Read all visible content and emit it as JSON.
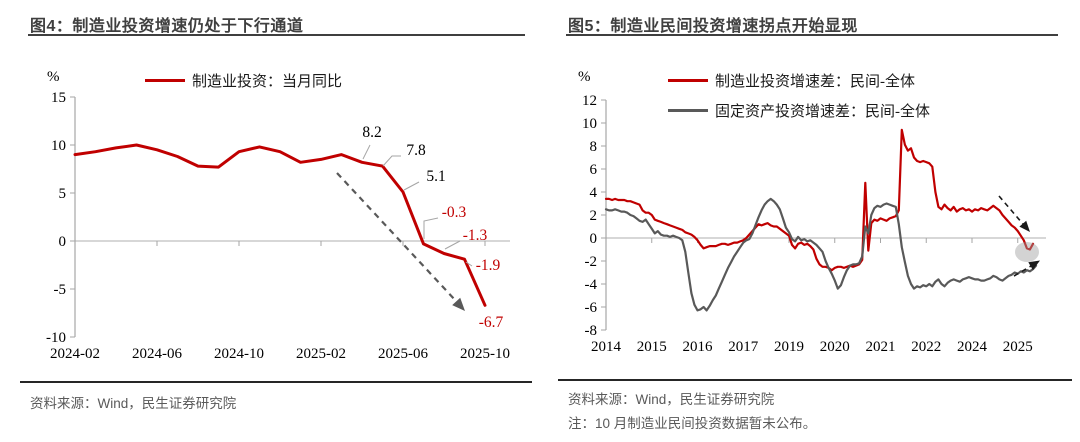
{
  "figure4": {
    "title": "图4：制造业投资增速仍处于下行通道",
    "unit_label": "%",
    "legend": "制造业投资：当月同比",
    "source": "资料来源：Wind，民生证券研究院"
  },
  "figure5": {
    "title": "图5：制造业民间投资增速拐点开始显现",
    "unit_label": "%",
    "legend1": "制造业投资增速差：民间-全体",
    "legend2": "固定资产投资增速差：民间-全体",
    "source": "资料来源：Wind，民生证券研究院",
    "note": "注：10 月制造业民间投资数据暂未公布。"
  },
  "colors": {
    "red": "#C00000",
    "gray": "#595959",
    "axis_line": "#a6a6a6",
    "zero_line": "#bfbfbf",
    "label_black": "#000000"
  },
  "chart_data": [
    {
      "type": "line",
      "title": "图4：制造业投资增速仍处于下行通道",
      "ylabel": "%",
      "ylim": [
        -10,
        15
      ],
      "yticks": [
        15,
        10,
        5,
        0,
        -5,
        -10
      ],
      "x_start": "2024-02",
      "x_end": "2025-10",
      "x_freq": "monthly",
      "categories": [
        "2024-02",
        "2024-03",
        "2024-04",
        "2024-05",
        "2024-06",
        "2024-07",
        "2024-08",
        "2024-09",
        "2024-10",
        "2024-11",
        "2024-12",
        "2025-01",
        "2025-02",
        "2025-03",
        "2025-04",
        "2025-05",
        "2025-06",
        "2025-07",
        "2025-08",
        "2025-09",
        "2025-10"
      ],
      "x_tick_labels": [
        "2024-02",
        "2024-06",
        "2024-10",
        "2025-02",
        "2025-06",
        "2025-10"
      ],
      "x_tick_indices": [
        0,
        4,
        8,
        12,
        16,
        20
      ],
      "series": [
        {
          "name": "制造业投资：当月同比",
          "color": "#C00000",
          "values": [
            9.0,
            9.3,
            9.7,
            10.0,
            9.5,
            8.8,
            7.8,
            7.7,
            9.3,
            9.8,
            9.3,
            8.2,
            8.5,
            9.0,
            8.2,
            7.8,
            5.1,
            -0.3,
            -1.3,
            -1.9,
            -6.7
          ]
        }
      ],
      "point_labels": [
        {
          "index": 14,
          "category": "2025-04",
          "text": "8.2",
          "color": "#000000"
        },
        {
          "index": 15,
          "category": "2025-05",
          "text": "7.8",
          "color": "#000000"
        },
        {
          "index": 16,
          "category": "2025-06",
          "text": "5.1",
          "color": "#000000"
        },
        {
          "index": 17,
          "category": "2025-07",
          "text": "-0.3",
          "color": "#C00000"
        },
        {
          "index": 18,
          "category": "2025-08",
          "text": "-1.3",
          "color": "#C00000"
        },
        {
          "index": 19,
          "category": "2025-09",
          "text": "-1.9",
          "color": "#C00000"
        },
        {
          "index": 20,
          "category": "2025-10",
          "text": "-6.7",
          "color": "#C00000"
        }
      ],
      "annotations": [
        "downward dashed arrow indicating downtrend"
      ],
      "legend_position": "top",
      "grid": false
    },
    {
      "type": "line",
      "title": "图5：制造业民间投资增速拐点开始显现",
      "ylabel": "%",
      "ylim": [
        -8,
        12
      ],
      "yticks": [
        12,
        10,
        8,
        6,
        4,
        2,
        0,
        -2,
        -4,
        -6,
        -8
      ],
      "x_start": "2014-01",
      "x_freq": "monthly",
      "x_tick_labels": [
        "2014",
        "2015",
        "2016",
        "2017",
        "2019",
        "2020",
        "2021",
        "2022",
        "2024",
        "2025"
      ],
      "x_tick_indices": [
        0,
        15,
        30,
        45,
        60,
        75,
        90,
        105,
        120,
        135
      ],
      "series": [
        {
          "name": "制造业投资增速差：民间-全体",
          "color": "#C00000",
          "x_end": "2025-09",
          "values": [
            3.4,
            3.4,
            3.3,
            3.4,
            3.3,
            3.3,
            3.3,
            3.2,
            3.2,
            3.1,
            3.0,
            2.9,
            2.4,
            2.2,
            2.2,
            2.0,
            1.6,
            1.5,
            1.4,
            1.3,
            1.2,
            1.1,
            1.0,
            0.9,
            0.8,
            0.7,
            0.5,
            0.4,
            0.3,
            0.1,
            -0.2,
            -0.6,
            -0.9,
            -0.8,
            -0.7,
            -0.7,
            -0.7,
            -0.6,
            -0.5,
            -0.5,
            -0.6,
            -0.5,
            -0.4,
            -0.4,
            -0.3,
            -0.2,
            0.0,
            0.3,
            0.6,
            0.9,
            1.2,
            1.1,
            1.2,
            1.3,
            1.1,
            1.0,
            1.0,
            0.8,
            0.6,
            0.4,
            0.2,
            -0.6,
            -0.9,
            -0.5,
            -0.4,
            -0.6,
            -0.5,
            -0.7,
            -1.0,
            -1.8,
            -2.3,
            -2.5,
            -2.5,
            -2.6,
            -2.8,
            -2.6,
            -2.5,
            -2.5,
            -2.6,
            -2.5,
            -2.4,
            -2.5,
            -2.4,
            -2.3,
            -1.9,
            4.8,
            -1.1,
            1.3,
            1.6,
            1.5,
            1.7,
            1.6,
            1.5,
            1.7,
            1.8,
            1.9,
            2.4,
            9.4,
            8.1,
            7.6,
            7.8,
            7.0,
            6.7,
            6.6,
            6.7,
            6.6,
            6.5,
            6.2,
            4.0,
            2.7,
            2.5,
            2.9,
            2.6,
            2.4,
            2.7,
            2.3,
            2.5,
            2.6,
            2.4,
            2.5,
            2.3,
            2.5,
            2.4,
            2.6,
            2.5,
            2.4,
            2.6,
            2.8,
            2.6,
            2.4,
            2.0,
            1.7,
            1.4,
            1.1,
            0.9,
            0.6,
            0.2,
            -0.2,
            -0.9,
            -1.0,
            -0.5
          ]
        },
        {
          "name": "固定资产投资增速差：民间-全体",
          "color": "#595959",
          "x_end": "2025-10",
          "values": [
            2.5,
            2.4,
            2.4,
            2.5,
            2.4,
            2.3,
            2.3,
            2.2,
            2.0,
            1.9,
            1.7,
            1.5,
            1.4,
            1.6,
            1.2,
            0.8,
            0.4,
            0.6,
            0.3,
            0.2,
            0.2,
            0.1,
            0.2,
            0.1,
            0.0,
            -0.2,
            -1.2,
            -3.0,
            -4.8,
            -5.8,
            -6.3,
            -6.2,
            -6.0,
            -6.3,
            -5.9,
            -5.4,
            -5.0,
            -4.4,
            -3.8,
            -3.2,
            -2.6,
            -2.1,
            -1.6,
            -1.2,
            -0.8,
            -0.4,
            -0.2,
            -0.1,
            0.4,
            1.1,
            1.8,
            2.4,
            2.9,
            3.2,
            3.4,
            3.2,
            2.9,
            2.5,
            1.7,
            0.9,
            0.5,
            -0.1,
            -0.3,
            0.1,
            -0.2,
            -0.1,
            -0.3,
            -0.2,
            -0.4,
            -0.6,
            -0.9,
            -1.2,
            -2.0,
            -2.6,
            -3.1,
            -3.7,
            -4.4,
            -4.1,
            -3.4,
            -2.8,
            -2.4,
            -2.3,
            -2.3,
            -2.2,
            -1.6,
            1.0,
            0.4,
            2.0,
            2.6,
            2.8,
            2.7,
            2.9,
            3.0,
            2.9,
            2.8,
            2.7,
            1.2,
            -0.8,
            -2.1,
            -3.3,
            -4.0,
            -4.4,
            -4.2,
            -4.3,
            -4.1,
            -4.2,
            -4.0,
            -4.2,
            -3.8,
            -3.6,
            -4.0,
            -4.2,
            -3.9,
            -3.7,
            -3.6,
            -3.7,
            -3.8,
            -3.6,
            -3.5,
            -3.4,
            -3.5,
            -3.6,
            -3.6,
            -3.7,
            -3.7,
            -3.6,
            -3.5,
            -3.3,
            -3.4,
            -3.6,
            -3.7,
            -3.5,
            -3.3,
            -3.2,
            -3.0,
            -3.1,
            -2.9,
            -3.0,
            -2.8,
            -2.9,
            -2.7,
            -2.4
          ]
        }
      ],
      "annotations": [
        "dashed arrow to red line end",
        "dashed arrow to gray line end",
        "gray highlight circle on red line end"
      ],
      "legend_position": "top",
      "grid": false
    }
  ]
}
